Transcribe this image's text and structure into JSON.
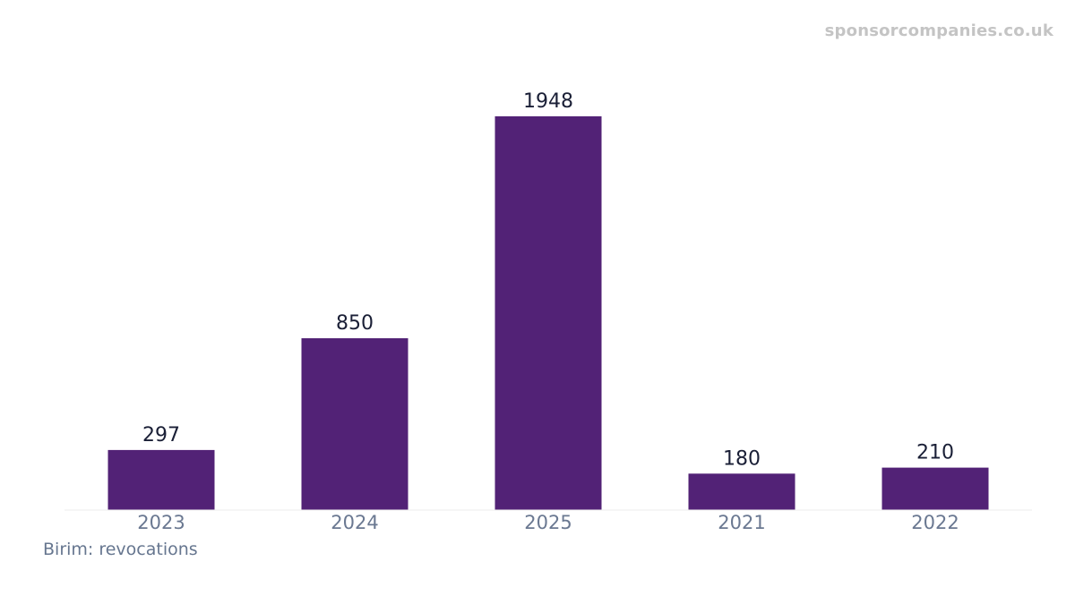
{
  "watermark": "sponsorcompanies.co.uk",
  "unit_note": "Birim: revocations",
  "colors": {
    "bar": "#522276",
    "baseline": "#eeeeee"
  },
  "chart_data": {
    "type": "bar",
    "categories": [
      "2023",
      "2024",
      "2025",
      "2021",
      "2022"
    ],
    "values": [
      297,
      850,
      1948,
      180,
      210
    ],
    "data_labels": [
      "297",
      "850",
      "1948",
      "180",
      "210"
    ],
    "title": "",
    "xlabel": "",
    "ylabel": "",
    "grid": false,
    "legend": "none"
  }
}
